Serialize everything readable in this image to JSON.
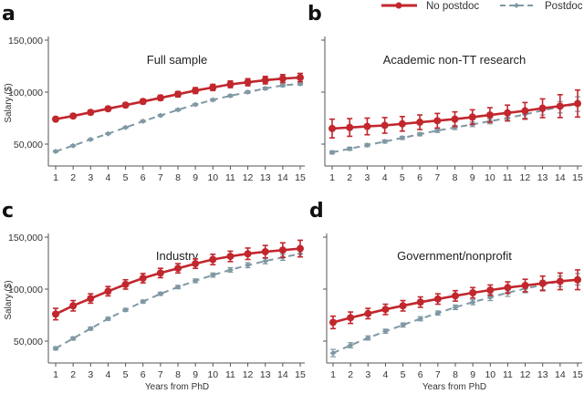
{
  "legend": {
    "items": [
      {
        "label": "No postdoc",
        "color": "#c1272d",
        "style": "solid",
        "marker": "circle"
      },
      {
        "label": "Postdoc",
        "color": "#7f98a3",
        "style": "dashed",
        "marker": "diamond"
      }
    ]
  },
  "chart_data": [
    {
      "type": "line",
      "panel": "a",
      "title": "Full sample",
      "xlabel": "",
      "ylabel": "Salary ($)",
      "ylim": [
        28000,
        150000
      ],
      "yticks": [
        "50,000",
        "100,000",
        "150,000"
      ],
      "ytick_values": [
        50000,
        100000,
        150000
      ],
      "x": [
        1,
        2,
        3,
        4,
        5,
        6,
        7,
        8,
        9,
        10,
        11,
        12,
        13,
        14,
        15
      ],
      "series": [
        {
          "name": "No postdoc",
          "values": [
            74000,
            77000,
            80500,
            84000,
            87500,
            91000,
            94500,
            98000,
            101500,
            104500,
            107500,
            109500,
            111500,
            113000,
            114000
          ],
          "err": [
            2000,
            2000,
            2000,
            2000,
            2000,
            2200,
            2400,
            2600,
            2800,
            3000,
            3200,
            3400,
            3600,
            3800,
            4000
          ]
        },
        {
          "name": "Postdoc",
          "values": [
            43000,
            48500,
            54500,
            60000,
            66000,
            72000,
            77500,
            83000,
            88000,
            92500,
            96500,
            100000,
            103500,
            106500,
            108000
          ],
          "err": [
            800,
            800,
            800,
            800,
            800,
            900,
            900,
            1000,
            1000,
            1100,
            1100,
            1200,
            1200,
            1300,
            1400
          ]
        }
      ]
    },
    {
      "type": "line",
      "panel": "b",
      "title": "Academic non-TT research",
      "xlabel": "",
      "ylabel": "",
      "ylim": [
        28000,
        150000
      ],
      "yticks": [
        "",
        "",
        ""
      ],
      "ytick_values": [
        50000,
        100000,
        150000
      ],
      "x": [
        1,
        2,
        3,
        4,
        5,
        6,
        7,
        8,
        9,
        10,
        11,
        12,
        13,
        14,
        15
      ],
      "series": [
        {
          "name": "No postdoc",
          "values": [
            65000,
            66000,
            67000,
            68000,
            69500,
            71000,
            72500,
            74000,
            76000,
            78000,
            80000,
            82000,
            84500,
            86500,
            89000
          ],
          "err": [
            9000,
            8500,
            8000,
            7500,
            7000,
            7000,
            7000,
            7000,
            7000,
            7000,
            7500,
            8000,
            9000,
            11000,
            13000
          ]
        },
        {
          "name": "Postdoc",
          "values": [
            42000,
            45500,
            49000,
            52500,
            56000,
            59500,
            63000,
            66000,
            69000,
            72000,
            75000,
            78500,
            82500,
            85500,
            88500
          ],
          "err": [
            1500,
            1500,
            1500,
            1500,
            1500,
            1500,
            1800,
            2000,
            2200,
            2500,
            3000,
            3500,
            4500,
            5500,
            7000
          ]
        }
      ]
    },
    {
      "type": "line",
      "panel": "c",
      "title": "Industry",
      "xlabel": "Years from PhD",
      "ylabel": "Salary ($)",
      "ylim": [
        28000,
        150000
      ],
      "yticks": [
        "50,000",
        "100,000",
        "150,000"
      ],
      "ytick_values": [
        50000,
        100000,
        150000
      ],
      "x": [
        1,
        2,
        3,
        4,
        5,
        6,
        7,
        8,
        9,
        10,
        11,
        12,
        13,
        14,
        15
      ],
      "series": [
        {
          "name": "No postdoc",
          "values": [
            76000,
            84000,
            91000,
            98000,
            104500,
            110500,
            115500,
            120000,
            124500,
            128500,
            131500,
            134000,
            136000,
            137500,
            139000
          ],
          "err": [
            5500,
            5000,
            4500,
            4500,
            4500,
            4500,
            4500,
            4500,
            4500,
            5000,
            5000,
            5500,
            6000,
            7000,
            8000
          ]
        },
        {
          "name": "Postdoc",
          "values": [
            43000,
            52500,
            62000,
            71500,
            80000,
            88000,
            95500,
            102000,
            108000,
            113500,
            118500,
            123000,
            127000,
            130500,
            134000
          ],
          "err": [
            1500,
            1500,
            1500,
            1500,
            1500,
            1500,
            1500,
            1600,
            1800,
            2000,
            2200,
            2400,
            2600,
            2800,
            3000
          ]
        }
      ]
    },
    {
      "type": "line",
      "panel": "d",
      "title": "Government/nonprofit",
      "xlabel": "Years from PhD",
      "ylabel": "",
      "ylim": [
        28000,
        150000
      ],
      "yticks": [
        "",
        "",
        ""
      ],
      "ytick_values": [
        50000,
        100000,
        150000
      ],
      "x": [
        1,
        2,
        3,
        4,
        5,
        6,
        7,
        8,
        9,
        10,
        11,
        12,
        13,
        14,
        15
      ],
      "series": [
        {
          "name": "No postdoc",
          "values": [
            68000,
            72500,
            76500,
            80500,
            84000,
            87500,
            90500,
            93500,
            96500,
            99000,
            101500,
            103500,
            105500,
            107500,
            109000
          ],
          "err": [
            6000,
            5500,
            5000,
            5000,
            5000,
            5000,
            5000,
            5000,
            5000,
            5000,
            5500,
            6000,
            7000,
            8000,
            9500
          ]
        },
        {
          "name": "Postdoc",
          "values": [
            38500,
            46000,
            53000,
            59500,
            65500,
            71500,
            77000,
            82500,
            87500,
            92000,
            96500,
            100500,
            104000,
            107500,
            109500
          ],
          "err": [
            3500,
            2500,
            2000,
            2000,
            2000,
            2000,
            2000,
            2200,
            2500,
            3000,
            3500,
            4000,
            4500,
            5000,
            5500
          ]
        }
      ]
    }
  ]
}
